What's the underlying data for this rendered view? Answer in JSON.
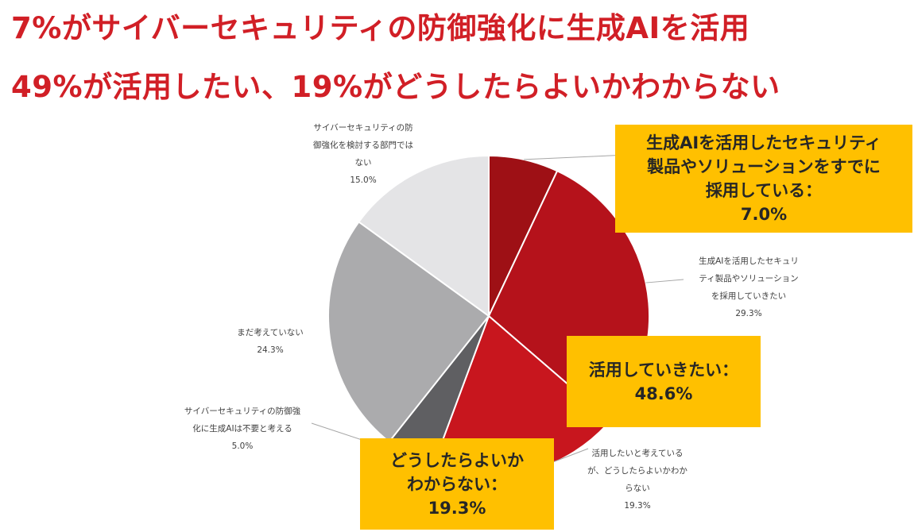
{
  "headline": {
    "line1": "7%がサイバーセキュリティの防御強化に生成AIを活用",
    "line2": "49%が活用したい、19%がどうしたらよいかわからない"
  },
  "chart_data": {
    "type": "pie",
    "slices": [
      {
        "label": "生成AIを活用したセキュリティ製品やソリューションをすでに採用している",
        "value": 7.0,
        "color": "#9e1015"
      },
      {
        "label": "生成AIを活用したセキュリティ製品やソリューションを採用していきたい",
        "value": 29.3,
        "color": "#b5121b"
      },
      {
        "label": "活用したいと考えているが、どうしたらよいかわからない",
        "value": 19.3,
        "color": "#c8161e"
      },
      {
        "label": "サイバーセキュリティの防御強化に生成AIは不要と考える",
        "value": 5.0,
        "color": "#5f5f62"
      },
      {
        "label": "まだ考えていない",
        "value": 24.3,
        "color": "#ababad"
      },
      {
        "label": "サイバーセキュリティの防御強化を検討する部門ではない",
        "value": 15.0,
        "color": "#e4e4e6"
      }
    ],
    "data_labels": {
      "adopted": {
        "lines": [
          "生成AIを活用したセキュリティ製品やソリューションを",
          "すでに採用している"
        ],
        "pct": "7.0%"
      },
      "want": {
        "lines": [
          "生成AIを活用したセキュリ",
          "ティ製品やソリューション",
          "を採用していきたい"
        ],
        "pct": "29.3%"
      },
      "unsure": {
        "lines": [
          "活用したいと考えている",
          "が、どうしたらよいかわか",
          "らない"
        ],
        "pct": "19.3%"
      },
      "unnecessary": {
        "lines": [
          "サイバーセキュリティの防御強",
          "化に生成AIは不要と考える"
        ],
        "pct": "5.0%"
      },
      "not_yet": {
        "lines": [
          "まだ考えていない"
        ],
        "pct": "24.3%"
      },
      "not_dept": {
        "lines": [
          "サイバーセキュリティの防",
          "御強化を検討する部門では",
          "ない"
        ],
        "pct": "15.0%"
      }
    }
  },
  "callouts": {
    "adopted": {
      "lines": [
        "生成AIを活用したセキュリティ",
        "製品やソリューションをすでに",
        "採用している："
      ],
      "pct": "7.0%"
    },
    "want": {
      "lines": [
        "活用していきたい："
      ],
      "pct": "48.6%"
    },
    "unsure": {
      "lines": [
        "どうしたらよいか",
        "わからない："
      ],
      "pct": "19.3%"
    }
  }
}
